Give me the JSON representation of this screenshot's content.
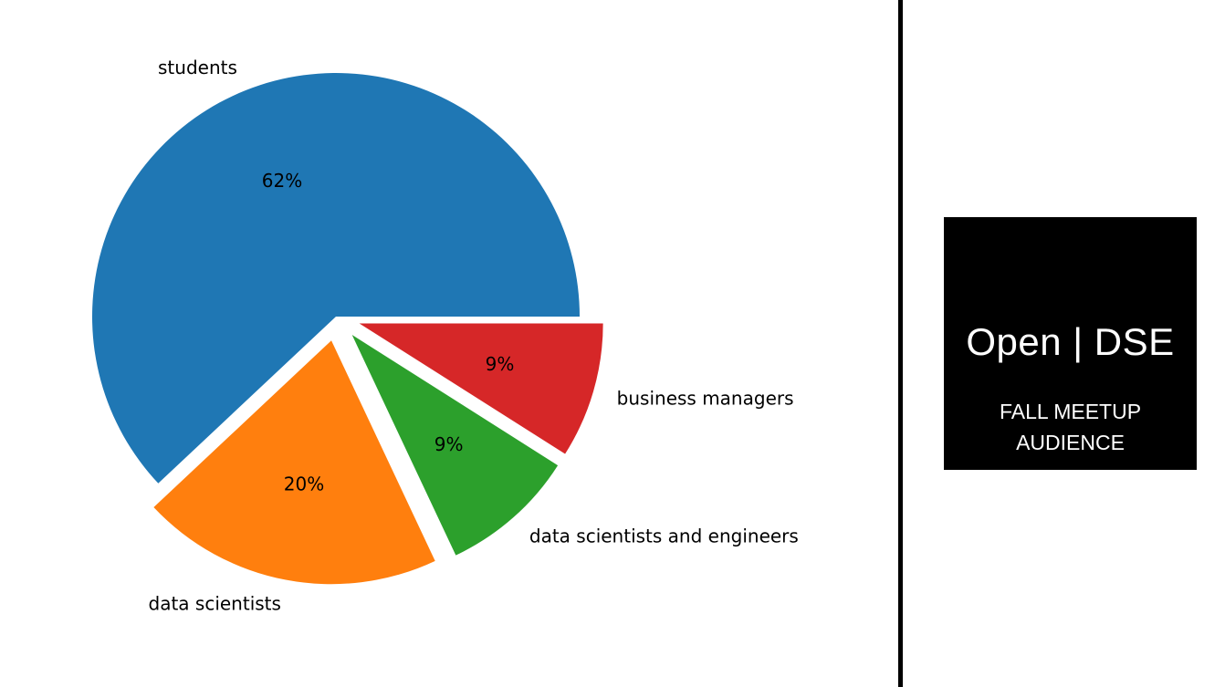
{
  "chart_data": {
    "type": "pie",
    "categories": [
      "students",
      "data scientists",
      "data scientists and engineers",
      "business managers"
    ],
    "values": [
      62,
      20,
      9,
      9
    ],
    "autopct_labels": [
      "62%",
      "20%",
      "9%",
      "9%"
    ],
    "explode": [
      0,
      0.1,
      0.1,
      0.1
    ],
    "colors": [
      "#1f77b4",
      "#ff7f0e",
      "#2ca02c",
      "#d62728"
    ],
    "title": "",
    "legend": "none"
  },
  "title_card": {
    "main": "Open | DSE",
    "sub_line1": "FALL MEETUP",
    "sub_line2": "AUDIENCE"
  }
}
